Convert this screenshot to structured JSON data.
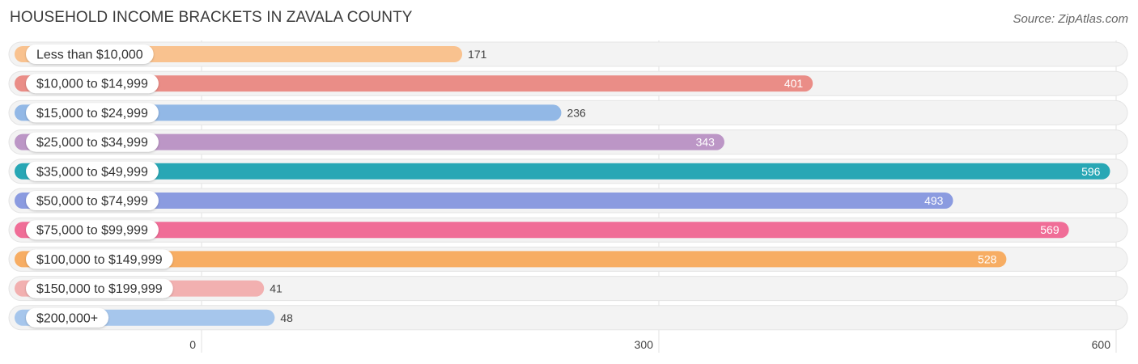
{
  "header": {
    "title": "HOUSEHOLD INCOME BRACKETS IN ZAVALA COUNTY",
    "source": "Source: ZipAtlas.com"
  },
  "chart_data": {
    "type": "bar",
    "orientation": "horizontal",
    "title": "HOUSEHOLD INCOME BRACKETS IN ZAVALA COUNTY",
    "categories": [
      "Less than $10,000",
      "$10,000 to $14,999",
      "$15,000 to $24,999",
      "$25,000 to $34,999",
      "$35,000 to $49,999",
      "$50,000 to $74,999",
      "$75,000 to $99,999",
      "$100,000 to $149,999",
      "$150,000 to $199,999",
      "$200,000+"
    ],
    "values": [
      171,
      401,
      236,
      343,
      596,
      493,
      569,
      528,
      41,
      48
    ],
    "colors": [
      "#f9c28f",
      "#ea8d87",
      "#92b8e6",
      "#bc96c6",
      "#28a7b5",
      "#8b9be0",
      "#f06d97",
      "#f7ad63",
      "#f2b0b0",
      "#a6c6ec"
    ],
    "xlim": [
      0,
      600
    ],
    "xticks": [
      0,
      300,
      600
    ],
    "grid": true
  }
}
